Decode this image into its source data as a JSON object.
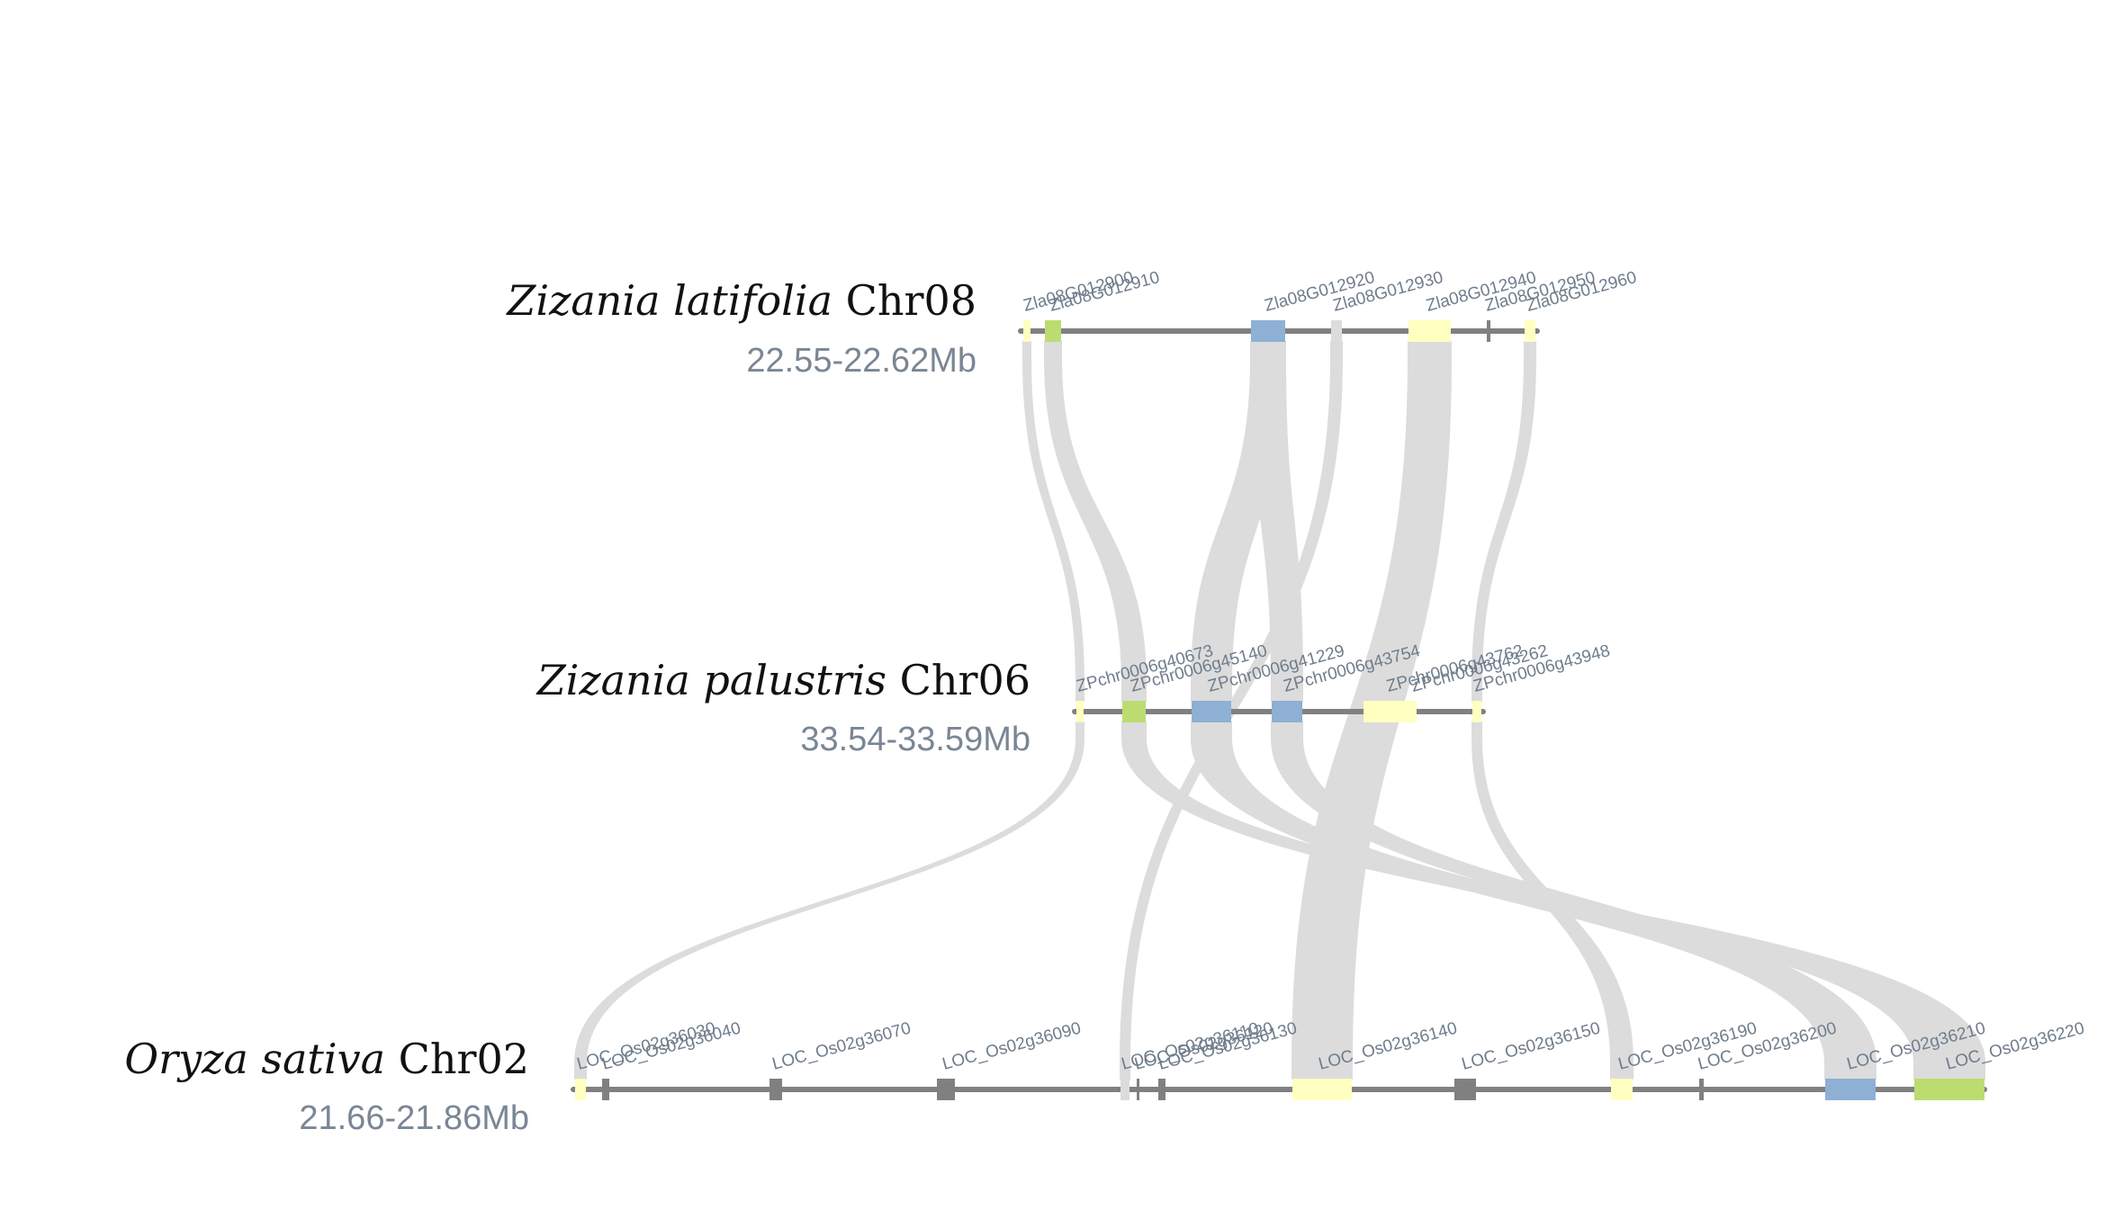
{
  "colors": {
    "link": "#dcdcdc",
    "chromosome": "#808080",
    "yellow": "#ffffc0",
    "blue": "#8eb0d4",
    "green": "#bcdc72",
    "grey": "#808080"
  },
  "tracks": [
    {
      "id": "zlat",
      "species": "Zizania latifolia",
      "chrom": "Chr08",
      "range": "22.55-22.62Mb",
      "genes": [
        {
          "name": "Zla08G012900",
          "color": "yellow"
        },
        {
          "name": "Zla08G012910",
          "color": "green"
        },
        {
          "name": "Zla08G012920",
          "color": "blue"
        },
        {
          "name": "Zla08G012930",
          "color": "link"
        },
        {
          "name": "Zla08G012940",
          "color": "yellow"
        },
        {
          "name": "Zla08G012950",
          "color": "grey"
        },
        {
          "name": "Zla08G012960",
          "color": "yellow"
        }
      ]
    },
    {
      "id": "zpal",
      "species": "Zizania palustris",
      "chrom": "Chr06",
      "range": "33.54-33.59Mb",
      "genes": [
        {
          "name": "ZPchr0006g40673",
          "color": "yellow"
        },
        {
          "name": "ZPchr0006g45140",
          "color": "green"
        },
        {
          "name": "ZPchr0006g41229",
          "color": "blue"
        },
        {
          "name": "ZPchr0006g43754",
          "color": "blue"
        },
        {
          "name": "ZPchr0006g43762",
          "color": "yellow"
        },
        {
          "name": "ZPchr0006g43262",
          "color": "yellow"
        },
        {
          "name": "ZPchr0006g43948",
          "color": "yellow"
        }
      ]
    },
    {
      "id": "osat",
      "species": "Oryza sativa",
      "chrom": "Chr02",
      "range": "21.66-21.86Mb",
      "genes": [
        {
          "name": "LOC_Os02g36030",
          "color": "yellow"
        },
        {
          "name": "LOC_Os02g36040",
          "color": "grey"
        },
        {
          "name": "LOC_Os02g36070",
          "color": "grey"
        },
        {
          "name": "LOC_Os02g36090",
          "color": "grey"
        },
        {
          "name": "LOC_Os02g36110",
          "color": "link"
        },
        {
          "name": "LOC_Os02g36120",
          "color": "grey"
        },
        {
          "name": "LOC_Os02g36130",
          "color": "grey"
        },
        {
          "name": "LOC_Os02g36140",
          "color": "yellow"
        },
        {
          "name": "LOC_Os02g36150",
          "color": "grey"
        },
        {
          "name": "LOC_Os02g36190",
          "color": "yellow"
        },
        {
          "name": "LOC_Os02g36200",
          "color": "grey"
        },
        {
          "name": "LOC_Os02g36210",
          "color": "blue"
        },
        {
          "name": "LOC_Os02g36220",
          "color": "green"
        }
      ]
    }
  ],
  "links": [
    {
      "from": "Zla08G012900",
      "to": "ZPchr0006g40673"
    },
    {
      "from": "Zla08G012910",
      "to": "ZPchr0006g45140"
    },
    {
      "from": "Zla08G012920",
      "to": "ZPchr0006g41229"
    },
    {
      "from": "Zla08G012920",
      "to": "ZPchr0006g43754"
    },
    {
      "from": "Zla08G012930",
      "to": "LOC_Os02g36110"
    },
    {
      "from": "Zla08G012940",
      "to": "LOC_Os02g36140"
    },
    {
      "from": "Zla08G012960",
      "to": "ZPchr0006g43948"
    },
    {
      "from": "ZPchr0006g40673",
      "to": "LOC_Os02g36030"
    },
    {
      "from": "ZPchr0006g45140",
      "to": "LOC_Os02g36220"
    },
    {
      "from": "ZPchr0006g41229",
      "to": "LOC_Os02g36210"
    },
    {
      "from": "ZPchr0006g43754",
      "to": "LOC_Os02g36210"
    },
    {
      "from": "ZPchr0006g43948",
      "to": "LOC_Os02g36190"
    }
  ]
}
